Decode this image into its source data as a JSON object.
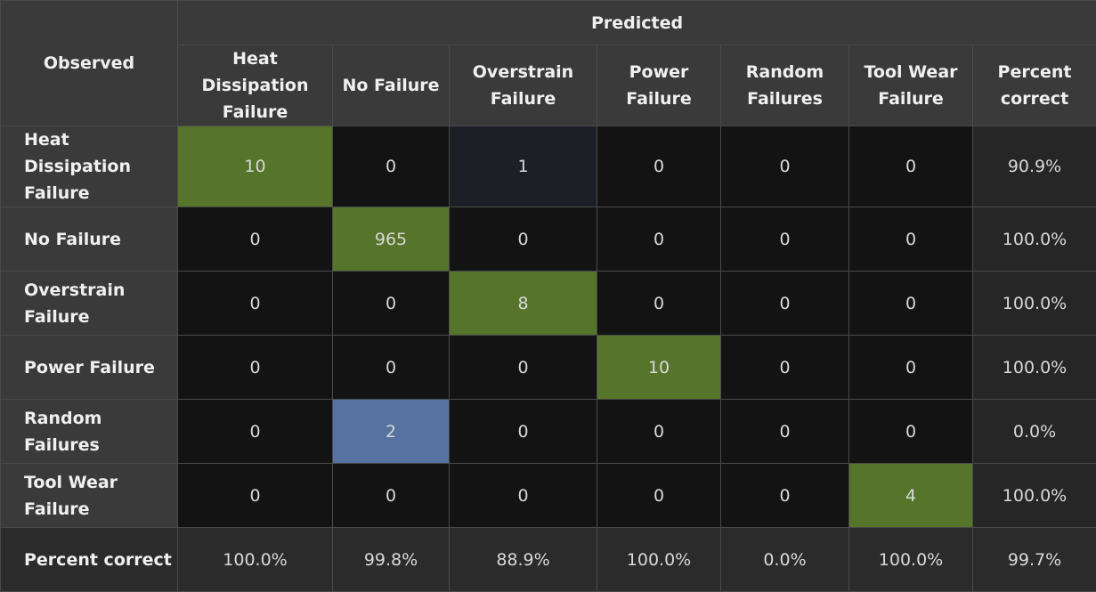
{
  "colors": {
    "correct": "#56742a",
    "misclass_strong": "#5572a0",
    "misclass_weak": "#1d1f26",
    "zero": "#131313"
  },
  "chart_data": {
    "type": "table",
    "corner_label": "Observed",
    "predicted_label": "Predicted",
    "columns": [
      "Heat Dissipation Failure",
      "No Failure",
      "Overstrain Failure",
      "Power Failure",
      "Random Failures",
      "Tool Wear Failure",
      "Percent correct"
    ],
    "rows": [
      {
        "label": "Heat Dissipation Failure",
        "values": [
          "10",
          "0",
          "1",
          "0",
          "0",
          "0"
        ],
        "percent": "90.9%"
      },
      {
        "label": "No Failure",
        "values": [
          "0",
          "965",
          "0",
          "0",
          "0",
          "0"
        ],
        "percent": "100.0%"
      },
      {
        "label": "Overstrain Failure",
        "values": [
          "0",
          "0",
          "8",
          "0",
          "0",
          "0"
        ],
        "percent": "100.0%"
      },
      {
        "label": "Power Failure",
        "values": [
          "0",
          "0",
          "0",
          "10",
          "0",
          "0"
        ],
        "percent": "100.0%"
      },
      {
        "label": "Random Failures",
        "values": [
          "0",
          "2",
          "0",
          "0",
          "0",
          "0"
        ],
        "percent": "0.0%"
      },
      {
        "label": "Tool Wear Failure",
        "values": [
          "0",
          "0",
          "0",
          "0",
          "0",
          "4"
        ],
        "percent": "100.0%"
      }
    ],
    "footer": {
      "label": "Percent correct",
      "values": [
        "100.0%",
        "99.8%",
        "88.9%",
        "100.0%",
        "0.0%",
        "100.0%",
        "99.7%"
      ]
    }
  }
}
